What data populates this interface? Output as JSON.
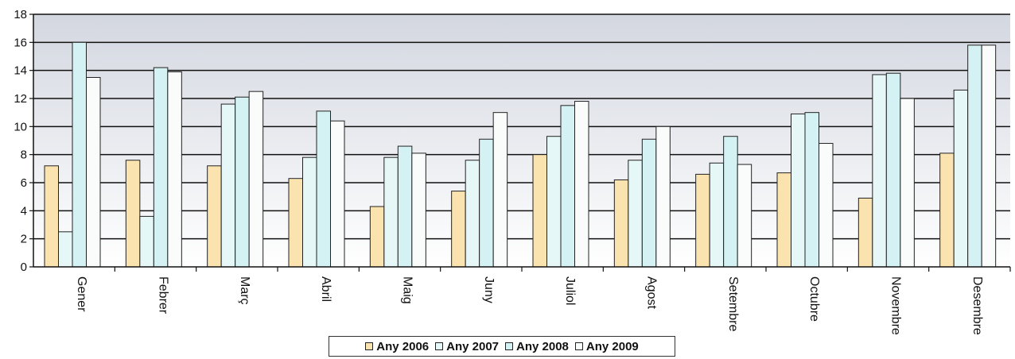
{
  "chart_data": {
    "type": "bar",
    "categories": [
      "Gener",
      "Febrer",
      "Març",
      "Abril",
      "Maig",
      "Juny",
      "Juliol",
      "Agost",
      "Setembre",
      "Octubre",
      "Novembre",
      "Desembre"
    ],
    "series": [
      {
        "name": "Any 2006",
        "color": "#fbe3b0",
        "values": [
          7.2,
          7.6,
          7.2,
          6.3,
          4.3,
          5.4,
          8.0,
          6.2,
          6.6,
          6.7,
          4.9,
          8.1
        ]
      },
      {
        "name": "Any 2007",
        "color": "#e6f7f7",
        "values": [
          2.5,
          3.6,
          11.6,
          7.8,
          7.8,
          7.6,
          9.3,
          7.6,
          7.4,
          10.9,
          13.7,
          12.6
        ]
      },
      {
        "name": "Any 2008",
        "color": "#d4f2f4",
        "values": [
          16.0,
          14.2,
          12.1,
          11.1,
          8.6,
          9.1,
          11.5,
          9.1,
          9.3,
          11.0,
          13.8,
          15.8
        ]
      },
      {
        "name": "Any 2009",
        "color": "#fafcfc",
        "values": [
          13.5,
          13.9,
          12.5,
          10.4,
          8.1,
          11.0,
          11.8,
          10.0,
          7.3,
          8.8,
          12.0,
          15.8
        ]
      }
    ],
    "ylim": [
      0,
      18
    ],
    "yticks": [
      "0",
      "2",
      "4",
      "6",
      "8",
      "10",
      "12",
      "14",
      "16",
      "18"
    ],
    "grid": true,
    "legend_position": "bottom",
    "colors": {
      "plot_background": "#d3d7e0",
      "gridline": "#111111",
      "bar_outline": "#222222"
    }
  }
}
